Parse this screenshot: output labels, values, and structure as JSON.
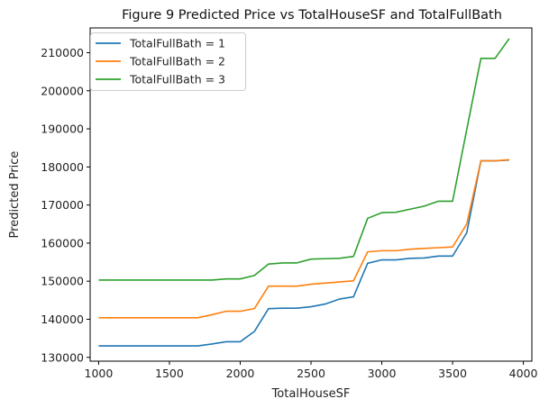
{
  "chart_data": {
    "type": "line",
    "title": "Figure 9 Predicted Price vs TotalHouseSF and TotalFullBath",
    "xlabel": "TotalHouseSF",
    "ylabel": "Predicted Price",
    "xlim": [
      940,
      4060
    ],
    "ylim": [
      129000,
      216500
    ],
    "xticks": [
      1000,
      1500,
      2000,
      2500,
      3000,
      3500,
      4000
    ],
    "yticks": [
      130000,
      140000,
      150000,
      160000,
      170000,
      180000,
      190000,
      200000,
      210000
    ],
    "grid": false,
    "legend_position": "top-left",
    "x": [
      1000,
      1100,
      1200,
      1300,
      1400,
      1500,
      1600,
      1700,
      1800,
      1900,
      2000,
      2100,
      2200,
      2300,
      2400,
      2500,
      2600,
      2700,
      2800,
      2900,
      3000,
      3100,
      3200,
      3300,
      3400,
      3500,
      3600,
      3700,
      3800,
      3900
    ],
    "series": [
      {
        "name": "TotalFullBath = 1",
        "color": "#1f77b4",
        "values": [
          133000,
          133000,
          133000,
          133000,
          133000,
          133000,
          133000,
          133000,
          133500,
          134100,
          134100,
          136800,
          142800,
          142900,
          142900,
          143300,
          144000,
          145300,
          145900,
          154700,
          155600,
          155600,
          156000,
          156100,
          156600,
          156600,
          162700,
          181600,
          181600,
          181800
        ]
      },
      {
        "name": "TotalFullBath = 2",
        "color": "#ff7f0e",
        "values": [
          140400,
          140400,
          140400,
          140400,
          140400,
          140400,
          140400,
          140400,
          141200,
          142100,
          142100,
          142800,
          148700,
          148700,
          148700,
          149200,
          149500,
          149800,
          150100,
          157700,
          158000,
          158000,
          158400,
          158600,
          158800,
          159000,
          165000,
          181600,
          181600,
          181900
        ]
      },
      {
        "name": "TotalFullBath = 3",
        "color": "#2ca02c",
        "values": [
          150300,
          150300,
          150300,
          150300,
          150300,
          150300,
          150300,
          150300,
          150300,
          150600,
          150600,
          151500,
          154500,
          154800,
          154800,
          155800,
          155900,
          156000,
          156500,
          166500,
          168000,
          168100,
          168900,
          169700,
          171000,
          171000,
          189800,
          208500,
          208500,
          213700
        ]
      }
    ]
  }
}
